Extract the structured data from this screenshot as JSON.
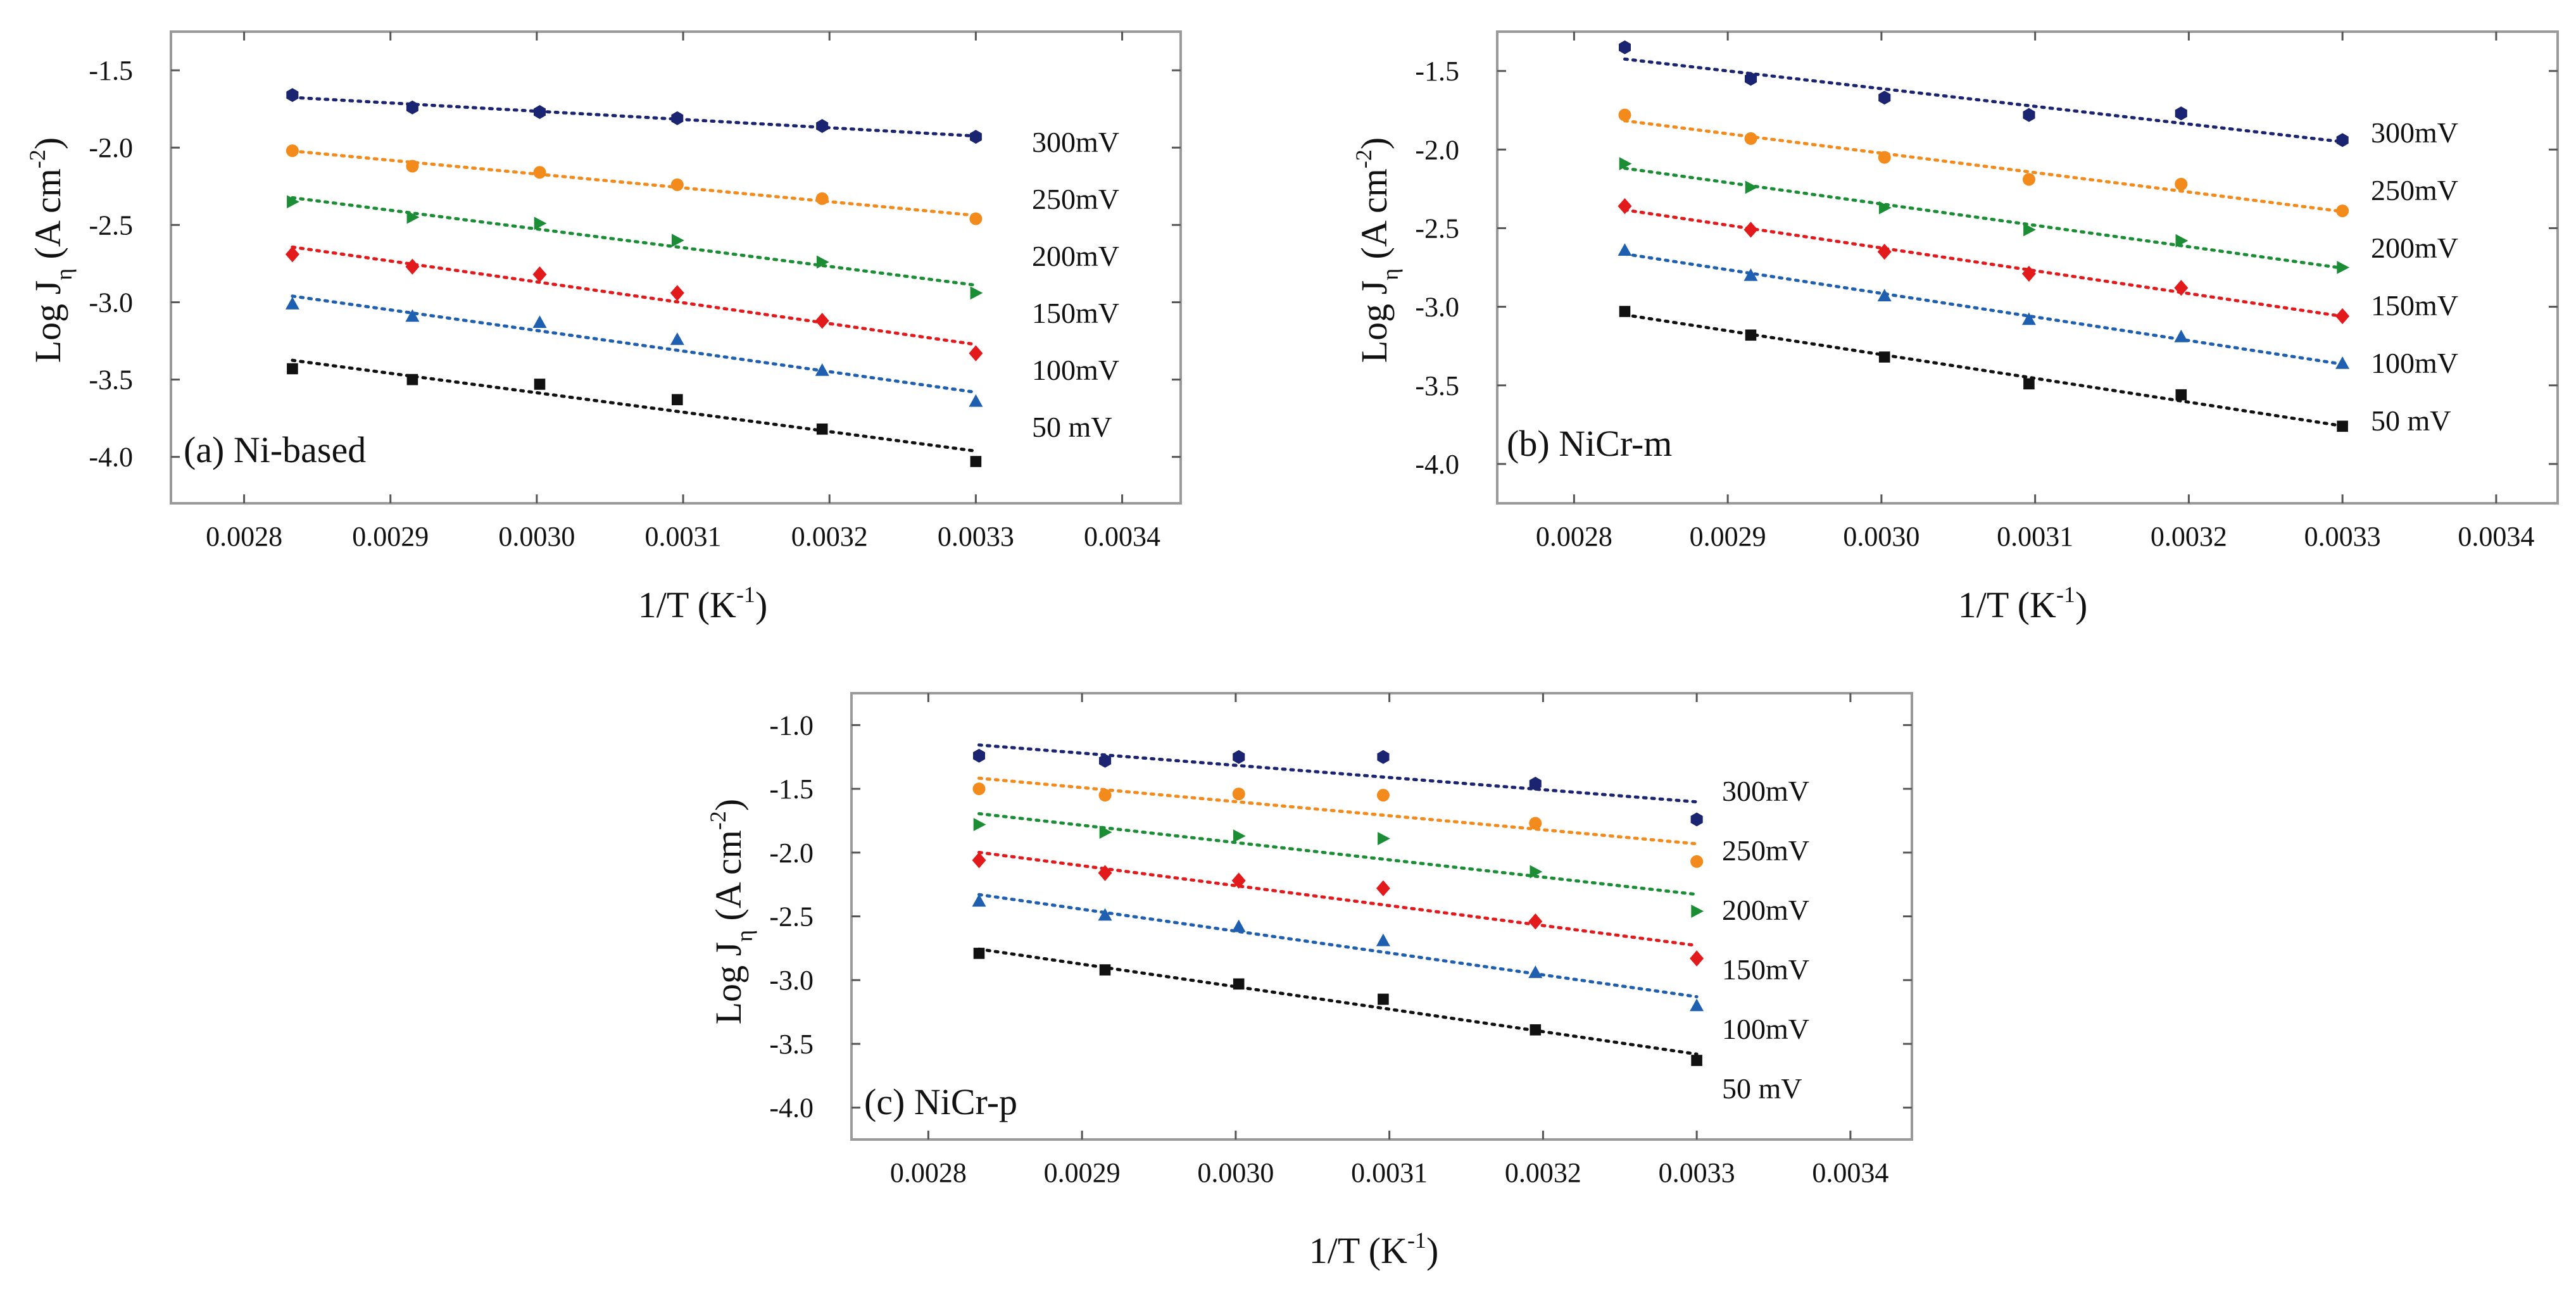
{
  "chart_data": [
    {
      "type": "scatter",
      "panel_label": "(a) Ni-based",
      "xlabel": "1/T (K-1)",
      "ylabel": "Log Jη (A cm-2)",
      "xlim": [
        0.00275,
        0.00344
      ],
      "ylim": [
        -4.3,
        -1.25
      ],
      "xticks": [
        "0.0028",
        "0.0029",
        "0.0030",
        "0.0031",
        "0.0032",
        "0.0033",
        "0.0034"
      ],
      "yticks": [
        "-1.5",
        "-2.0",
        "-2.5",
        "-3.0",
        "-3.5",
        "-4.0"
      ],
      "x": [
        0.002833,
        0.002915,
        0.003002,
        0.003096,
        0.003195,
        0.0033
      ],
      "series": [
        {
          "name": "300mV",
          "color": "#1b2470",
          "marker": "hexagon",
          "values": [
            -1.66,
            -1.74,
            -1.77,
            -1.81,
            -1.86,
            -1.93
          ]
        },
        {
          "name": "250mV",
          "color": "#f28a1c",
          "marker": "circle",
          "values": [
            -2.02,
            -2.12,
            -2.16,
            -2.24,
            -2.33,
            -2.46
          ]
        },
        {
          "name": "200mV",
          "color": "#1a8d35",
          "marker": "triangle-right",
          "values": [
            -2.35,
            -2.45,
            -2.49,
            -2.6,
            -2.74,
            -2.94
          ]
        },
        {
          "name": "150mV",
          "color": "#e31a1c",
          "marker": "diamond",
          "values": [
            -2.69,
            -2.77,
            -2.82,
            -2.94,
            -3.12,
            -3.33
          ]
        },
        {
          "name": "100mV",
          "color": "#1f5fb0",
          "marker": "triangle-up",
          "values": [
            -3.01,
            -3.09,
            -3.13,
            -3.24,
            -3.44,
            -3.64
          ]
        },
        {
          "name": "50 mV",
          "color": "#111111",
          "marker": "square",
          "values": [
            -3.43,
            -3.5,
            -3.53,
            -3.63,
            -3.82,
            -4.03
          ]
        }
      ]
    },
    {
      "type": "scatter",
      "panel_label": "(b) NiCr-m",
      "xlabel": "1/T (K-1)",
      "ylabel": "Log Jη (A cm-2)",
      "xlim": [
        0.00275,
        0.00344
      ],
      "ylim": [
        -4.25,
        -1.25
      ],
      "xticks": [
        "0.0028",
        "0.0029",
        "0.0030",
        "0.0031",
        "0.0032",
        "0.0033",
        "0.0034"
      ],
      "yticks": [
        "-1.5",
        "-2.0",
        "-2.5",
        "-3.0",
        "-3.5",
        "-4.0"
      ],
      "x": [
        0.002833,
        0.002915,
        0.003002,
        0.003096,
        0.003195,
        0.0033
      ],
      "series": [
        {
          "name": "300mV",
          "color": "#1b2470",
          "marker": "hexagon",
          "values": [
            -1.35,
            -1.55,
            -1.67,
            -1.78,
            -1.77,
            -1.94
          ]
        },
        {
          "name": "250mV",
          "color": "#f28a1c",
          "marker": "circle",
          "values": [
            -1.78,
            -1.93,
            -2.05,
            -2.19,
            -2.22,
            -2.39
          ]
        },
        {
          "name": "200mV",
          "color": "#1a8d35",
          "marker": "triangle-right",
          "values": [
            -2.09,
            -2.24,
            -2.37,
            -2.51,
            -2.58,
            -2.75
          ]
        },
        {
          "name": "150mV",
          "color": "#e31a1c",
          "marker": "diamond",
          "values": [
            -2.36,
            -2.51,
            -2.65,
            -2.79,
            -2.88,
            -3.06
          ]
        },
        {
          "name": "100mV",
          "color": "#1f5fb0",
          "marker": "triangle-up",
          "values": [
            -2.64,
            -2.8,
            -2.93,
            -3.08,
            -3.19,
            -3.36
          ]
        },
        {
          "name": "50 mV",
          "color": "#111111",
          "marker": "square",
          "values": [
            -3.03,
            -3.18,
            -3.32,
            -3.49,
            -3.56,
            -3.76
          ]
        }
      ]
    },
    {
      "type": "scatter",
      "panel_label": "(c) NiCr-p",
      "xlabel": "1/T (K-1)",
      "ylabel": "Log Jη (A cm-2)",
      "xlim": [
        0.00275,
        0.00344
      ],
      "ylim": [
        -4.25,
        -0.75
      ],
      "xticks": [
        "0.0028",
        "0.0029",
        "0.0030",
        "0.0031",
        "0.0032",
        "0.0033",
        "0.0034"
      ],
      "yticks": [
        "-1.0",
        "-1.5",
        "-2.0",
        "-2.5",
        "-3.0",
        "-3.5",
        "-4.0"
      ],
      "x": [
        0.002833,
        0.002915,
        0.003002,
        0.003096,
        0.003195,
        0.0033
      ],
      "series": [
        {
          "name": "300mV",
          "color": "#1b2470",
          "marker": "hexagon",
          "values": [
            -1.24,
            -1.28,
            -1.25,
            -1.25,
            -1.46,
            -1.74
          ]
        },
        {
          "name": "250mV",
          "color": "#f28a1c",
          "marker": "circle",
          "values": [
            -1.5,
            -1.55,
            -1.54,
            -1.55,
            -1.77,
            -2.07
          ]
        },
        {
          "name": "200mV",
          "color": "#1a8d35",
          "marker": "triangle-right",
          "values": [
            -1.78,
            -1.84,
            -1.87,
            -1.89,
            -2.15,
            -2.46
          ]
        },
        {
          "name": "150mV",
          "color": "#e31a1c",
          "marker": "diamond",
          "values": [
            -2.06,
            -2.16,
            -2.22,
            -2.28,
            -2.54,
            -2.83
          ]
        },
        {
          "name": "100mV",
          "color": "#1f5fb0",
          "marker": "triangle-up",
          "values": [
            -2.38,
            -2.49,
            -2.58,
            -2.69,
            -2.94,
            -3.2
          ]
        },
        {
          "name": "50 mV",
          "color": "#111111",
          "marker": "square",
          "values": [
            -2.79,
            -2.92,
            -3.03,
            -3.15,
            -3.39,
            -3.63
          ]
        }
      ]
    }
  ]
}
